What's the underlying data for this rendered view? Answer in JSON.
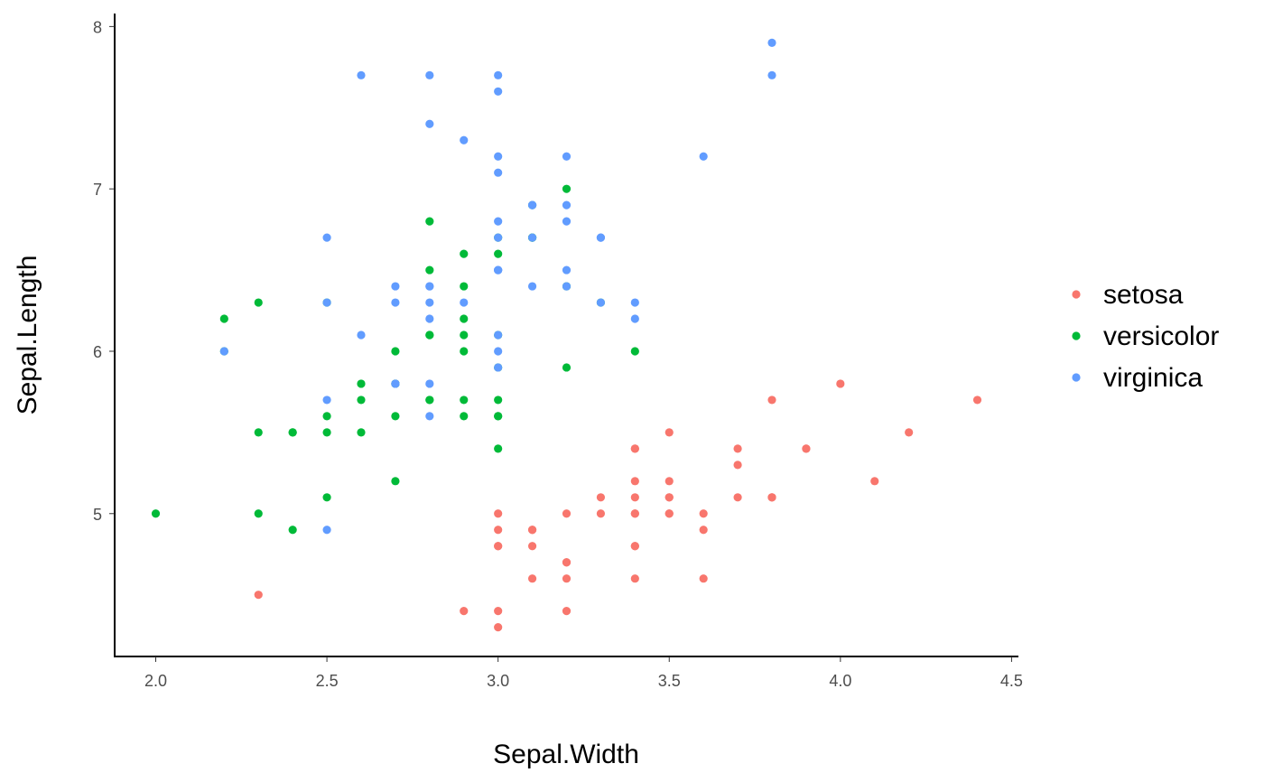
{
  "chart_data": {
    "type": "scatter",
    "title": "",
    "xlabel": "Sepal.Width",
    "ylabel": "Sepal.Length",
    "xlim": [
      1.88,
      4.52
    ],
    "ylim": [
      4.12,
      8.08
    ],
    "xticks": [
      2.0,
      2.5,
      3.0,
      3.5,
      4.0,
      4.5
    ],
    "xtick_labels": [
      "2.0",
      "2.5",
      "3.0",
      "3.5",
      "4.0",
      "4.5"
    ],
    "yticks": [
      5,
      6,
      7,
      8
    ],
    "ytick_labels": [
      "5",
      "6",
      "7",
      "8"
    ],
    "grid": false,
    "legend_position": "right",
    "series": [
      {
        "name": "setosa",
        "color": "#F8766D",
        "points": [
          [
            3.5,
            5.1
          ],
          [
            3.0,
            4.9
          ],
          [
            3.2,
            4.7
          ],
          [
            3.1,
            4.6
          ],
          [
            3.6,
            5.0
          ],
          [
            3.9,
            5.4
          ],
          [
            3.4,
            4.6
          ],
          [
            3.4,
            5.0
          ],
          [
            2.9,
            4.4
          ],
          [
            3.1,
            4.9
          ],
          [
            3.7,
            5.4
          ],
          [
            3.4,
            4.8
          ],
          [
            3.0,
            4.8
          ],
          [
            3.0,
            4.3
          ],
          [
            4.0,
            5.8
          ],
          [
            4.4,
            5.7
          ],
          [
            3.9,
            5.4
          ],
          [
            3.5,
            5.1
          ],
          [
            3.8,
            5.7
          ],
          [
            3.8,
            5.1
          ],
          [
            3.4,
            5.4
          ],
          [
            3.7,
            5.1
          ],
          [
            3.6,
            4.6
          ],
          [
            3.3,
            5.1
          ],
          [
            3.4,
            4.8
          ],
          [
            3.0,
            5.0
          ],
          [
            3.4,
            5.0
          ],
          [
            3.5,
            5.2
          ],
          [
            3.4,
            5.2
          ],
          [
            3.2,
            4.7
          ],
          [
            3.1,
            4.8
          ],
          [
            3.4,
            5.4
          ],
          [
            4.1,
            5.2
          ],
          [
            4.2,
            5.5
          ],
          [
            3.1,
            4.9
          ],
          [
            3.2,
            5.0
          ],
          [
            3.5,
            5.5
          ],
          [
            3.6,
            4.9
          ],
          [
            3.0,
            4.4
          ],
          [
            3.4,
            5.1
          ],
          [
            3.5,
            5.0
          ],
          [
            2.3,
            4.5
          ],
          [
            3.2,
            4.4
          ],
          [
            3.5,
            5.0
          ],
          [
            3.8,
            5.1
          ],
          [
            3.0,
            4.8
          ],
          [
            3.8,
            5.1
          ],
          [
            3.2,
            4.6
          ],
          [
            3.7,
            5.3
          ],
          [
            3.3,
            5.0
          ]
        ]
      },
      {
        "name": "versicolor",
        "color": "#00BA38",
        "points": [
          [
            3.2,
            7.0
          ],
          [
            3.2,
            6.4
          ],
          [
            3.1,
            6.9
          ],
          [
            2.3,
            5.5
          ],
          [
            2.8,
            6.5
          ],
          [
            2.8,
            5.7
          ],
          [
            3.3,
            6.3
          ],
          [
            2.4,
            4.9
          ],
          [
            2.9,
            6.6
          ],
          [
            2.7,
            5.2
          ],
          [
            2.0,
            5.0
          ],
          [
            3.0,
            5.9
          ],
          [
            2.2,
            6.0
          ],
          [
            2.9,
            6.1
          ],
          [
            2.9,
            5.6
          ],
          [
            3.1,
            6.7
          ],
          [
            3.0,
            5.6
          ],
          [
            2.7,
            5.8
          ],
          [
            2.2,
            6.2
          ],
          [
            2.5,
            5.6
          ],
          [
            3.2,
            5.9
          ],
          [
            2.8,
            6.1
          ],
          [
            2.5,
            6.3
          ],
          [
            2.8,
            6.1
          ],
          [
            2.9,
            6.4
          ],
          [
            3.0,
            6.6
          ],
          [
            2.8,
            6.8
          ],
          [
            3.0,
            6.7
          ],
          [
            2.9,
            6.0
          ],
          [
            2.6,
            5.7
          ],
          [
            2.4,
            5.5
          ],
          [
            2.4,
            5.5
          ],
          [
            2.7,
            5.8
          ],
          [
            2.7,
            6.0
          ],
          [
            3.0,
            5.4
          ],
          [
            3.4,
            6.0
          ],
          [
            3.1,
            6.7
          ],
          [
            2.3,
            6.3
          ],
          [
            3.0,
            5.6
          ],
          [
            2.5,
            5.5
          ],
          [
            2.6,
            5.5
          ],
          [
            3.0,
            6.1
          ],
          [
            2.6,
            5.8
          ],
          [
            2.3,
            5.0
          ],
          [
            2.7,
            5.6
          ],
          [
            3.0,
            5.7
          ],
          [
            2.9,
            5.7
          ],
          [
            2.9,
            6.2
          ],
          [
            2.5,
            5.1
          ],
          [
            2.8,
            5.7
          ]
        ]
      },
      {
        "name": "virginica",
        "color": "#619CFF",
        "points": [
          [
            3.3,
            6.3
          ],
          [
            2.7,
            5.8
          ],
          [
            3.0,
            7.1
          ],
          [
            2.9,
            6.3
          ],
          [
            3.0,
            6.5
          ],
          [
            3.0,
            7.6
          ],
          [
            2.5,
            4.9
          ],
          [
            2.9,
            7.3
          ],
          [
            2.5,
            6.7
          ],
          [
            3.6,
            7.2
          ],
          [
            3.2,
            6.5
          ],
          [
            2.7,
            6.4
          ],
          [
            3.0,
            6.8
          ],
          [
            2.5,
            5.7
          ],
          [
            2.8,
            5.8
          ],
          [
            3.2,
            6.4
          ],
          [
            3.0,
            6.5
          ],
          [
            3.8,
            7.7
          ],
          [
            2.6,
            7.7
          ],
          [
            2.2,
            6.0
          ],
          [
            3.2,
            6.9
          ],
          [
            2.8,
            5.6
          ],
          [
            2.8,
            7.7
          ],
          [
            2.7,
            6.3
          ],
          [
            3.3,
            6.7
          ],
          [
            3.2,
            7.2
          ],
          [
            2.8,
            6.2
          ],
          [
            3.0,
            6.1
          ],
          [
            2.8,
            6.4
          ],
          [
            3.0,
            7.2
          ],
          [
            2.8,
            7.4
          ],
          [
            3.8,
            7.9
          ],
          [
            2.8,
            6.4
          ],
          [
            2.8,
            6.3
          ],
          [
            2.6,
            6.1
          ],
          [
            3.0,
            7.7
          ],
          [
            3.4,
            6.3
          ],
          [
            3.1,
            6.4
          ],
          [
            3.0,
            6.0
          ],
          [
            3.1,
            6.9
          ],
          [
            3.1,
            6.7
          ],
          [
            3.1,
            6.9
          ],
          [
            2.7,
            5.8
          ],
          [
            3.2,
            6.8
          ],
          [
            3.3,
            6.7
          ],
          [
            3.0,
            6.7
          ],
          [
            2.5,
            6.3
          ],
          [
            3.0,
            6.5
          ],
          [
            3.4,
            6.2
          ],
          [
            3.0,
            5.9
          ]
        ]
      }
    ]
  }
}
